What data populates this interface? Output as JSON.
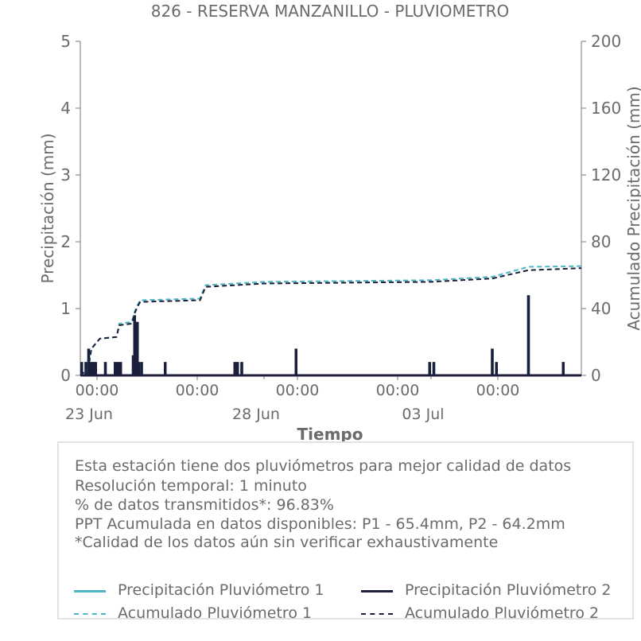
{
  "chart_data": {
    "type": "line",
    "title": "826 - RESERVA MANZANILLO - PLUVIOMETRO",
    "xlabel": "Tiempo",
    "ylabel": "Precipitación (mm)",
    "y2label": "Acumulado Precipitación (mm)",
    "ylim": [
      0,
      5
    ],
    "y2lim": [
      0,
      200
    ],
    "yticks": [
      "0",
      "1",
      "2",
      "3",
      "4",
      "5"
    ],
    "y2ticks": [
      "0",
      "40",
      "80",
      "120",
      "160",
      "200"
    ],
    "xlim": [
      "2024-06-22T12:00",
      "2024-07-07T12:00"
    ],
    "xticks": [
      {
        "x": "2024-06-23T00:00",
        "label": "00:00"
      },
      {
        "x": "2024-06-26T00:00",
        "label": "00:00"
      },
      {
        "x": "2024-06-29T00:00",
        "label": "00:00"
      },
      {
        "x": "2024-07-02T00:00",
        "label": "00:00"
      },
      {
        "x": "2024-07-05T00:00",
        "label": "00:00"
      }
    ],
    "xdate_labels": [
      {
        "x": "2024-06-23T00:00",
        "label": "23 Jun"
      },
      {
        "x": "2024-06-28T00:00",
        "label": "28 Jun"
      },
      {
        "x": "2024-07-03T00:00",
        "label": "03 Jul"
      }
    ],
    "grid": false,
    "series": [
      {
        "name": "Precipitación Pluviómetro 1",
        "axis": "left",
        "color": "#4db6c4",
        "style": "solid",
        "points": [
          {
            "x": "2024-06-22T13:00",
            "y": 0.2
          },
          {
            "x": "2024-06-22T16:00",
            "y": 0.2
          },
          {
            "x": "2024-06-22T18:00",
            "y": 0.4
          },
          {
            "x": "2024-06-22T19:00",
            "y": 0.2
          },
          {
            "x": "2024-06-22T21:00",
            "y": 0.2
          },
          {
            "x": "2024-06-22T23:00",
            "y": 0.2
          },
          {
            "x": "2024-06-23T06:00",
            "y": 0.2
          },
          {
            "x": "2024-06-23T13:00",
            "y": 0.2
          },
          {
            "x": "2024-06-23T15:00",
            "y": 0.2
          },
          {
            "x": "2024-06-23T17:00",
            "y": 0.2
          },
          {
            "x": "2024-06-24T02:00",
            "y": 0.3
          },
          {
            "x": "2024-06-24T03:00",
            "y": 0.9
          },
          {
            "x": "2024-06-24T04:00",
            "y": 0.4
          },
          {
            "x": "2024-06-24T05:00",
            "y": 0.8
          },
          {
            "x": "2024-06-24T06:00",
            "y": 0.2
          },
          {
            "x": "2024-06-24T08:00",
            "y": 0.2
          },
          {
            "x": "2024-06-25T01:00",
            "y": 0.2
          },
          {
            "x": "2024-06-27T03:00",
            "y": 0.2
          },
          {
            "x": "2024-06-27T05:00",
            "y": 0.2
          },
          {
            "x": "2024-06-27T08:00",
            "y": 0.2
          },
          {
            "x": "2024-06-28T23:00",
            "y": 0.4
          },
          {
            "x": "2024-07-02T23:00",
            "y": 0.2
          },
          {
            "x": "2024-07-03T02:00",
            "y": 0.2
          },
          {
            "x": "2024-07-04T20:00",
            "y": 0.4
          },
          {
            "x": "2024-07-04T23:00",
            "y": 0.2
          },
          {
            "x": "2024-07-05T22:00",
            "y": 1.2
          },
          {
            "x": "2024-07-06T23:00",
            "y": 0.2
          }
        ]
      },
      {
        "name": "Precipitación Pluviómetro 2",
        "axis": "left",
        "color": "#1b1f3b",
        "style": "solid",
        "points": [
          {
            "x": "2024-06-22T13:00",
            "y": 0.2
          },
          {
            "x": "2024-06-22T16:00",
            "y": 0.2
          },
          {
            "x": "2024-06-22T18:00",
            "y": 0.4
          },
          {
            "x": "2024-06-22T19:00",
            "y": 0.2
          },
          {
            "x": "2024-06-22T21:00",
            "y": 0.2
          },
          {
            "x": "2024-06-22T23:00",
            "y": 0.2
          },
          {
            "x": "2024-06-23T06:00",
            "y": 0.2
          },
          {
            "x": "2024-06-23T13:00",
            "y": 0.2
          },
          {
            "x": "2024-06-23T15:00",
            "y": 0.2
          },
          {
            "x": "2024-06-23T17:00",
            "y": 0.2
          },
          {
            "x": "2024-06-24T02:00",
            "y": 0.3
          },
          {
            "x": "2024-06-24T03:00",
            "y": 0.9
          },
          {
            "x": "2024-06-24T04:00",
            "y": 0.4
          },
          {
            "x": "2024-06-24T05:00",
            "y": 0.8
          },
          {
            "x": "2024-06-24T06:00",
            "y": 0.2
          },
          {
            "x": "2024-06-24T08:00",
            "y": 0.2
          },
          {
            "x": "2024-06-25T01:00",
            "y": 0.2
          },
          {
            "x": "2024-06-27T03:00",
            "y": 0.2
          },
          {
            "x": "2024-06-27T05:00",
            "y": 0.2
          },
          {
            "x": "2024-06-27T08:00",
            "y": 0.2
          },
          {
            "x": "2024-06-28T23:00",
            "y": 0.4
          },
          {
            "x": "2024-07-02T23:00",
            "y": 0.2
          },
          {
            "x": "2024-07-03T02:00",
            "y": 0.2
          },
          {
            "x": "2024-07-04T20:00",
            "y": 0.4
          },
          {
            "x": "2024-07-04T23:00",
            "y": 0.2
          },
          {
            "x": "2024-07-05T22:00",
            "y": 1.2
          },
          {
            "x": "2024-07-06T23:00",
            "y": 0.2
          }
        ]
      },
      {
        "name": "Acumulado Pluviómetro 1",
        "axis": "right",
        "color": "#4db6c4",
        "style": "dashed",
        "points": [
          {
            "x": "2024-06-22T12:00",
            "y": 0
          },
          {
            "x": "2024-06-22T15:00",
            "y": 2
          },
          {
            "x": "2024-06-22T18:00",
            "y": 6
          },
          {
            "x": "2024-06-22T20:00",
            "y": 16
          },
          {
            "x": "2024-06-22T23:00",
            "y": 19
          },
          {
            "x": "2024-06-23T02:00",
            "y": 22
          },
          {
            "x": "2024-06-23T14:00",
            "y": 23
          },
          {
            "x": "2024-06-23T16:00",
            "y": 31
          },
          {
            "x": "2024-06-24T01:00",
            "y": 32
          },
          {
            "x": "2024-06-24T03:00",
            "y": 38
          },
          {
            "x": "2024-06-24T05:00",
            "y": 42
          },
          {
            "x": "2024-06-24T07:00",
            "y": 45
          },
          {
            "x": "2024-06-26T02:00",
            "y": 46
          },
          {
            "x": "2024-06-26T06:00",
            "y": 54
          },
          {
            "x": "2024-06-28T00:00",
            "y": 56
          },
          {
            "x": "2024-07-03T00:00",
            "y": 57
          },
          {
            "x": "2024-07-04T20:00",
            "y": 59
          },
          {
            "x": "2024-07-05T22:00",
            "y": 65
          },
          {
            "x": "2024-07-07T12:00",
            "y": 65.4
          }
        ]
      },
      {
        "name": "Acumulado Pluviómetro 2",
        "axis": "right",
        "color": "#1b1f3b",
        "style": "dashed",
        "points": [
          {
            "x": "2024-06-22T12:00",
            "y": 0
          },
          {
            "x": "2024-06-22T15:00",
            "y": 2
          },
          {
            "x": "2024-06-22T18:00",
            "y": 6
          },
          {
            "x": "2024-06-22T20:00",
            "y": 16
          },
          {
            "x": "2024-06-22T23:00",
            "y": 19
          },
          {
            "x": "2024-06-23T02:00",
            "y": 22
          },
          {
            "x": "2024-06-23T14:00",
            "y": 23
          },
          {
            "x": "2024-06-23T16:00",
            "y": 30
          },
          {
            "x": "2024-06-24T01:00",
            "y": 31
          },
          {
            "x": "2024-06-24T03:00",
            "y": 37
          },
          {
            "x": "2024-06-24T05:00",
            "y": 41
          },
          {
            "x": "2024-06-24T07:00",
            "y": 44
          },
          {
            "x": "2024-06-26T02:00",
            "y": 45
          },
          {
            "x": "2024-06-26T06:00",
            "y": 53
          },
          {
            "x": "2024-06-28T00:00",
            "y": 55
          },
          {
            "x": "2024-07-03T00:00",
            "y": 56
          },
          {
            "x": "2024-07-04T20:00",
            "y": 58
          },
          {
            "x": "2024-07-05T22:00",
            "y": 63
          },
          {
            "x": "2024-07-07T12:00",
            "y": 64.2
          }
        ]
      }
    ]
  },
  "info": {
    "lines": [
      "Esta estación tiene dos pluviómetros para mejor calidad de datos",
      "Resolución temporal: 1 minuto",
      "% de datos transmitidos*: 96.83%",
      "PPT Acumulada en datos disponibles: P1 - 65.4mm, P2 - 64.2mm",
      "*Calidad de los datos aún sin verificar exhaustivamente"
    ]
  },
  "legend": {
    "items": [
      {
        "label": "Precipitación Pluviómetro 1",
        "color": "#4db6c4",
        "style": "solid"
      },
      {
        "label": "Precipitación Pluviómetro 2",
        "color": "#1b1f3b",
        "style": "solid"
      },
      {
        "label": "Acumulado Pluviómetro 1",
        "color": "#4db6c4",
        "style": "dashed"
      },
      {
        "label": "Acumulado Pluviómetro 2",
        "color": "#1b1f3b",
        "style": "dashed"
      }
    ]
  }
}
